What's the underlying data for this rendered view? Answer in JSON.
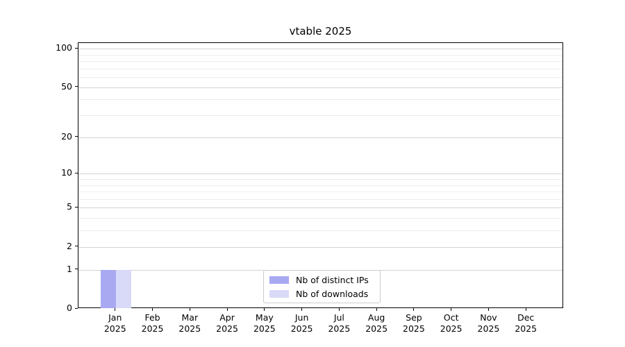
{
  "chart_data": {
    "type": "bar",
    "title": "vtable 2025",
    "categories": [
      "Jan 2025",
      "Feb 2025",
      "Mar 2025",
      "Apr 2025",
      "May 2025",
      "Jun 2025",
      "Jul 2025",
      "Aug 2025",
      "Sep 2025",
      "Oct 2025",
      "Nov 2025",
      "Dec 2025"
    ],
    "months": [
      "Jan",
      "Feb",
      "Mar",
      "Apr",
      "May",
      "Jun",
      "Jul",
      "Aug",
      "Sep",
      "Oct",
      "Nov",
      "Dec"
    ],
    "year": "2025",
    "series": [
      {
        "name": "Nb of distinct IPs",
        "color": "#a9a9f2",
        "values": [
          1,
          0,
          0,
          0,
          0,
          0,
          0,
          0,
          0,
          0,
          0,
          0
        ]
      },
      {
        "name": "Nb of downloads",
        "color": "#d9d9f8",
        "values": [
          1,
          0,
          0,
          0,
          0,
          0,
          0,
          0,
          0,
          0,
          0,
          0
        ]
      }
    ],
    "xlabel": "",
    "ylabel": "",
    "y_scale": "log1p",
    "ylim": [
      0,
      110
    ],
    "y_ticks": [
      0,
      1,
      2,
      5,
      10,
      20,
      50,
      100
    ],
    "y_minor_ticks": [
      3,
      4,
      6,
      7,
      8,
      9,
      30,
      40,
      60,
      70,
      80,
      90
    ],
    "grid": true,
    "legend_position": "lower center"
  },
  "colors": {
    "major_grid": "#d4d4d4",
    "minor_grid": "#ececec",
    "axis": "#000000",
    "background": "#ffffff"
  }
}
